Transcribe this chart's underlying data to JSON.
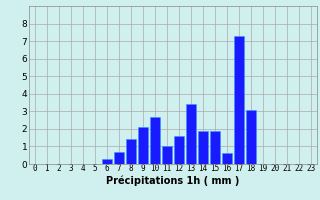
{
  "hours": [
    0,
    1,
    2,
    3,
    4,
    5,
    6,
    7,
    8,
    9,
    10,
    11,
    12,
    13,
    14,
    15,
    16,
    17,
    18,
    19,
    20,
    21,
    22,
    23
  ],
  "values": [
    0,
    0,
    0,
    0,
    0,
    0,
    0.3,
    0.7,
    1.4,
    2.1,
    2.7,
    1.0,
    1.6,
    3.4,
    1.9,
    1.9,
    0.6,
    7.3,
    3.1,
    0,
    0,
    0,
    0,
    0
  ],
  "bar_color": "#1a1aff",
  "bar_edge_color": "#3399ff",
  "background_color": "#d0f0f0",
  "grid_color": "#aaaaaa",
  "xlabel": "Précipitations 1h ( mm )",
  "ylim": [
    0,
    9
  ],
  "yticks": [
    0,
    1,
    2,
    3,
    4,
    5,
    6,
    7,
    8
  ],
  "label_fontsize": 7,
  "tick_fontsize": 5.5
}
